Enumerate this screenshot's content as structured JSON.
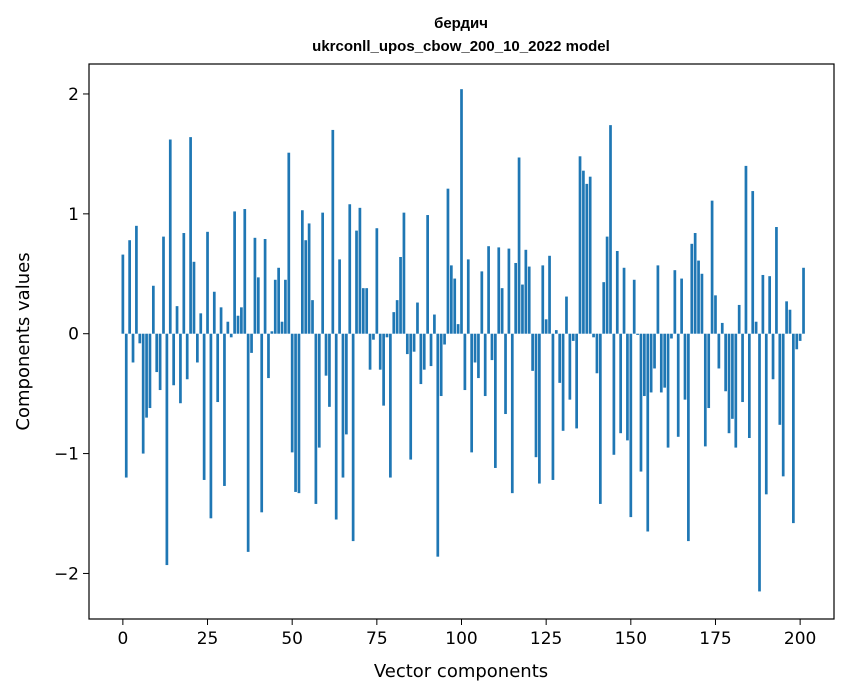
{
  "chart_data": {
    "type": "bar",
    "title_line1": "бердич",
    "title_line2": "ukrconll_upos_cbow_200_10_2022 model",
    "xlabel": "Vector components",
    "ylabel": "Components values",
    "xlim": [
      -10,
      210
    ],
    "ylim": [
      -2.38,
      2.25
    ],
    "xticks": [
      0,
      25,
      50,
      75,
      100,
      125,
      150,
      175,
      200
    ],
    "xtick_labels": [
      "0",
      "25",
      "50",
      "75",
      "100",
      "125",
      "150",
      "175",
      "200"
    ],
    "yticks": [
      -2,
      -1,
      0,
      1,
      2
    ],
    "ytick_labels": [
      "−2",
      "−1",
      "0",
      "1",
      "2"
    ],
    "bar_color": "#1f77b4",
    "values": [
      0.66,
      -1.2,
      0.78,
      -0.24,
      0.9,
      -0.08,
      -1.0,
      -0.7,
      -0.62,
      0.4,
      -0.32,
      -0.47,
      0.81,
      -1.93,
      1.62,
      -0.43,
      0.23,
      -0.58,
      0.84,
      -0.38,
      1.64,
      0.6,
      -0.24,
      0.17,
      -1.22,
      0.85,
      -1.54,
      0.35,
      -0.57,
      0.22,
      -1.27,
      0.1,
      -0.03,
      1.02,
      0.15,
      0.22,
      1.04,
      -1.82,
      -0.16,
      0.8,
      0.47,
      -1.49,
      0.79,
      -0.37,
      0.02,
      0.45,
      0.55,
      0.1,
      0.45,
      1.51,
      -0.99,
      -1.32,
      -1.33,
      1.03,
      0.78,
      0.92,
      0.28,
      -1.42,
      -0.95,
      1.01,
      -0.35,
      -0.61,
      1.7,
      -1.55,
      0.62,
      -1.2,
      -0.84,
      1.08,
      -1.73,
      0.86,
      1.05,
      0.38,
      0.38,
      -0.3,
      -0.05,
      0.88,
      -0.3,
      -0.6,
      -0.03,
      -1.2,
      0.18,
      0.28,
      0.64,
      1.01,
      -0.17,
      -1.05,
      -0.15,
      0.26,
      -0.42,
      -0.3,
      0.99,
      -0.27,
      0.16,
      -1.86,
      -0.52,
      -0.09,
      1.21,
      0.57,
      0.46,
      0.08,
      2.04,
      -0.47,
      0.62,
      -0.99,
      -0.24,
      -0.37,
      0.52,
      -0.52,
      0.73,
      -0.22,
      -1.12,
      0.72,
      0.38,
      -0.67,
      0.71,
      -1.33,
      0.59,
      1.47,
      0.41,
      0.7,
      0.56,
      -0.31,
      -1.03,
      -1.25,
      0.57,
      0.12,
      0.65,
      -1.22,
      0.03,
      -0.41,
      -0.81,
      0.31,
      -0.55,
      -0.06,
      -0.79,
      1.48,
      1.36,
      1.25,
      1.31,
      -0.03,
      -0.33,
      -1.42,
      0.43,
      0.81,
      1.74,
      -1.01,
      0.69,
      -0.83,
      0.55,
      -0.89,
      -1.53,
      0.45,
      -0.01,
      -1.15,
      -0.52,
      -1.65,
      -0.49,
      -0.29,
      0.57,
      -0.49,
      -0.45,
      -0.95,
      -0.04,
      0.53,
      -0.86,
      0.46,
      -0.55,
      -1.73,
      0.75,
      0.84,
      0.61,
      0.5,
      -0.94,
      -0.62,
      1.11,
      0.32,
      -0.29,
      0.09,
      -0.48,
      -0.83,
      -0.71,
      -0.95,
      0.24,
      -0.57,
      1.4,
      -0.87,
      1.19,
      0.1,
      -2.15,
      0.49,
      -1.34,
      0.48,
      -0.38,
      0.89,
      -0.76,
      -1.19,
      0.27,
      0.2,
      -1.58,
      -0.13,
      -0.06,
      0.55
    ]
  }
}
